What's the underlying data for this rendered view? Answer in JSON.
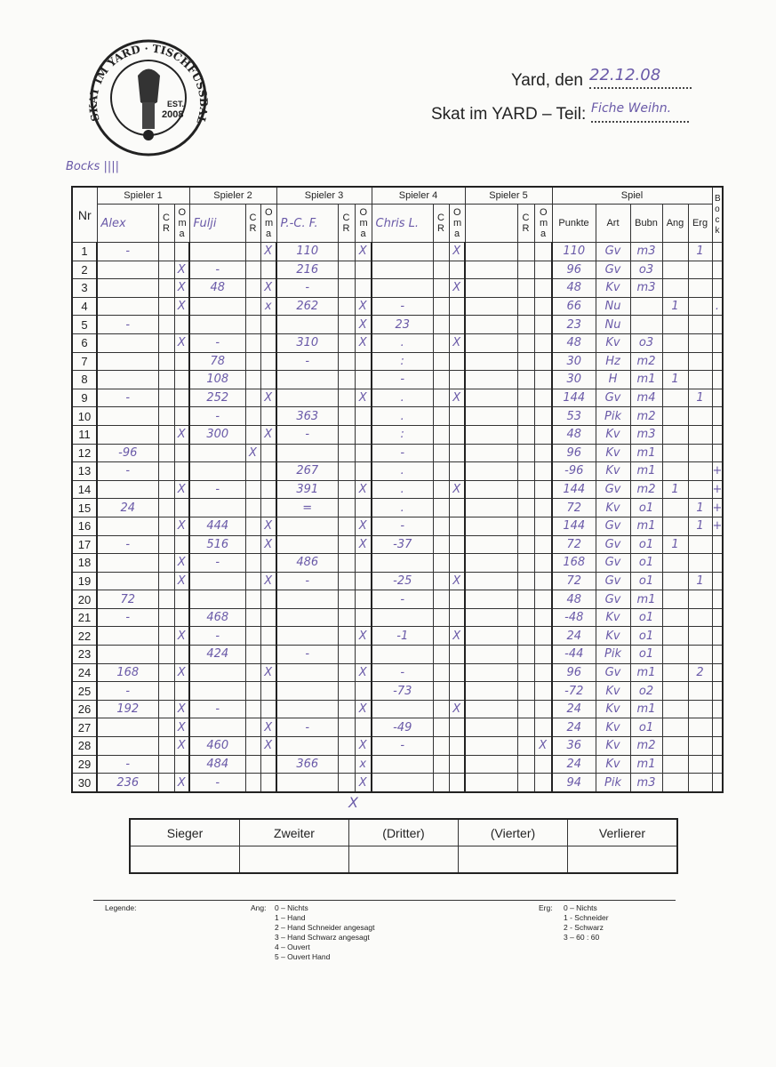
{
  "logo": {
    "text_top": "SKAT IM YARD",
    "text_right": "TISCHFUSSBALLTEAM",
    "est": "EST.",
    "year": "2008"
  },
  "header": {
    "date_label": "Yard, den",
    "date_value": "22.12.08",
    "part_label": "Skat im YARD – Teil:",
    "part_value": "Fiche Weihn.",
    "bocks_note": "Bocks ||||"
  },
  "table": {
    "nr_label": "Nr",
    "players": [
      {
        "label": "Spieler 1",
        "name": "Alex"
      },
      {
        "label": "Spieler 2",
        "name": "Fulji"
      },
      {
        "label": "Spieler 3",
        "name": "P.-C. F."
      },
      {
        "label": "Spieler 4",
        "name": "Chris L."
      },
      {
        "label": "Spieler 5",
        "name": ""
      }
    ],
    "cr_label": "C R",
    "oma_label": "O m a",
    "spiel_label": "Spiel",
    "spiel_cols": [
      "Punkte",
      "Art",
      "Bubn",
      "Ang",
      "Erg"
    ],
    "bock_label": "B o c k",
    "rows": [
      [
        "-",
        "",
        "",
        "",
        "",
        "X",
        "110",
        "",
        "X",
        "",
        "",
        "X",
        "",
        "",
        "",
        "110",
        "Gv",
        "m3",
        "",
        "1",
        ""
      ],
      [
        "",
        "",
        "X",
        "-",
        "",
        "",
        "216",
        "",
        "",
        "",
        "",
        "",
        "",
        "",
        "",
        "96",
        "Gv",
        "o3",
        "",
        "",
        ""
      ],
      [
        "",
        "",
        "X",
        "48",
        "",
        "X",
        "-",
        "",
        "",
        "",
        "",
        "X",
        "",
        "",
        "",
        "48",
        "Kv",
        "m3",
        "",
        "",
        ""
      ],
      [
        "",
        "",
        "X",
        "",
        "",
        "x",
        "262",
        "",
        "X",
        "-",
        "",
        "",
        "",
        "",
        "",
        "66",
        "Nu",
        "",
        "1",
        "",
        "."
      ],
      [
        "-",
        "",
        "",
        "",
        "",
        "",
        "",
        "",
        "X",
        "23",
        "",
        "",
        "",
        "",
        "",
        "23",
        "Nu",
        "",
        "",
        "",
        ""
      ],
      [
        "",
        "",
        "X",
        "-",
        "",
        "",
        "310",
        "",
        "X",
        ".",
        "",
        "X",
        "",
        "",
        "",
        "48",
        "Kv",
        "o3",
        "",
        "",
        ""
      ],
      [
        "",
        "",
        "",
        "78",
        "",
        "",
        "-",
        "",
        "",
        ":",
        "",
        "",
        "",
        "",
        "",
        "30",
        "Hz",
        "m2",
        "",
        "",
        ""
      ],
      [
        "",
        "",
        "",
        "108",
        "",
        "",
        "",
        "",
        "",
        "-",
        "",
        "",
        "",
        "",
        "",
        "30",
        "H",
        "m1",
        "1",
        "",
        ""
      ],
      [
        "-",
        "",
        "",
        "252",
        "",
        "X",
        "",
        "",
        "X",
        ".",
        "",
        "X",
        "",
        "",
        "",
        "144",
        "Gv",
        "m4",
        "",
        "1",
        ""
      ],
      [
        "",
        "",
        "",
        "-",
        "",
        "",
        "363",
        "",
        "",
        ".",
        "",
        "",
        "",
        "",
        "",
        "53",
        "Pik",
        "m2",
        "",
        "",
        ""
      ],
      [
        "",
        "",
        "X",
        "300",
        "",
        "X",
        "-",
        "",
        "",
        ":",
        "",
        "",
        "",
        "",
        "",
        "48",
        "Kv",
        "m3",
        "",
        "",
        ""
      ],
      [
        "-96",
        "",
        "",
        "",
        "X",
        "",
        "",
        "",
        "",
        "-",
        "",
        "",
        "",
        "",
        "",
        "96",
        "Kv",
        "m1",
        "",
        "",
        ""
      ],
      [
        "-",
        "",
        "",
        "",
        "",
        "",
        "267",
        "",
        "",
        ".",
        "",
        "",
        "",
        "",
        "",
        "-96",
        "Kv",
        "m1",
        "",
        "",
        "+"
      ],
      [
        "",
        "",
        "X",
        "-",
        "",
        "",
        "391",
        "",
        "X",
        ".",
        "",
        "X",
        "",
        "",
        "",
        "144",
        "Gv",
        "m2",
        "1",
        "",
        "+"
      ],
      [
        "24",
        "",
        "",
        "",
        "",
        "",
        "=",
        "",
        "",
        ".",
        "",
        "",
        "",
        "",
        "",
        "72",
        "Kv",
        "o1",
        "",
        "1",
        "+"
      ],
      [
        "",
        "",
        "X",
        "444",
        "",
        "X",
        "",
        "",
        "X",
        "-",
        "",
        "",
        "",
        "",
        "",
        "144",
        "Gv",
        "m1",
        "",
        "1",
        "+"
      ],
      [
        "-",
        "",
        "",
        "516",
        "",
        "X",
        "",
        "",
        "X",
        "-37",
        "",
        "",
        "",
        "",
        "",
        "72",
        "Gv",
        "o1",
        "1",
        "",
        ""
      ],
      [
        "",
        "",
        "X",
        "-",
        "",
        "",
        "486",
        "",
        "",
        "",
        "",
        "",
        "",
        "",
        "",
        "168",
        "Gv",
        "o1",
        "",
        "",
        ""
      ],
      [
        "",
        "",
        "X",
        "",
        "",
        "X",
        "-",
        "",
        "",
        "-25",
        "",
        "X",
        "",
        "",
        "",
        "72",
        "Gv",
        "o1",
        "",
        "1",
        ""
      ],
      [
        "72",
        "",
        "",
        "",
        "",
        "",
        "",
        "",
        "",
        "-",
        "",
        "",
        "",
        "",
        "",
        "48",
        "Gv",
        "m1",
        "",
        "",
        ""
      ],
      [
        "-",
        "",
        "",
        "468",
        "",
        "",
        "",
        "",
        "",
        "",
        "",
        "",
        "",
        "",
        "",
        "-48",
        "Kv",
        "o1",
        "",
        "",
        ""
      ],
      [
        "",
        "",
        "X",
        "-",
        "",
        "",
        "",
        "",
        "X",
        "-1",
        "",
        "X",
        "",
        "",
        "",
        "24",
        "Kv",
        "o1",
        "",
        "",
        ""
      ],
      [
        "",
        "",
        "",
        "424",
        "",
        "",
        "-",
        "",
        "",
        "",
        "",
        "",
        "",
        "",
        "",
        "-44",
        "Pik",
        "o1",
        "",
        "",
        ""
      ],
      [
        "168",
        "",
        "X",
        "",
        "",
        "X",
        "",
        "",
        "X",
        "-",
        "",
        "",
        "",
        "",
        "",
        "96",
        "Gv",
        "m1",
        "",
        "2",
        ""
      ],
      [
        "-",
        "",
        "",
        "",
        "",
        "",
        "",
        "",
        "",
        "-73",
        "",
        "",
        "",
        "",
        "",
        "-72",
        "Kv",
        "o2",
        "",
        "",
        ""
      ],
      [
        "192",
        "",
        "X",
        "-",
        "",
        "",
        "",
        "",
        "X",
        "",
        "",
        "X",
        "",
        "",
        "",
        "24",
        "Kv",
        "m1",
        "",
        "",
        ""
      ],
      [
        "",
        "",
        "X",
        "",
        "",
        "X",
        "-",
        "",
        "",
        "-49",
        "",
        "",
        "",
        "",
        "",
        "24",
        "Kv",
        "o1",
        "",
        "",
        ""
      ],
      [
        "",
        "",
        "X",
        "460",
        "",
        "X",
        "",
        "",
        "X",
        "-",
        "",
        "",
        "",
        "",
        "X",
        "36",
        "Kv",
        "m2",
        "",
        "",
        ""
      ],
      [
        "-",
        "",
        "",
        "484",
        "",
        "",
        "366",
        "",
        "x",
        "",
        "",
        "",
        "",
        "",
        "",
        "24",
        "Kv",
        "m1",
        "",
        "",
        ""
      ],
      [
        "236",
        "",
        "X",
        "-",
        "",
        "",
        "",
        "",
        "X",
        "",
        "",
        "",
        "",
        "",
        "",
        "94",
        "Pik",
        "m3",
        "",
        "",
        ""
      ]
    ],
    "below_mark": "X"
  },
  "result": {
    "headers": [
      "Sieger",
      "Zweiter",
      "(Dritter)",
      "(Vierter)",
      "Verlierer"
    ]
  },
  "legend": {
    "title": "Legende:",
    "ang_label": "Ang:",
    "ang_items": [
      "0 – Nichts",
      "1 – Hand",
      "2 – Hand Schneider angesagt",
      "3 – Hand Schwarz angesagt",
      "4 – Ouvert",
      "5 – Ouvert Hand"
    ],
    "erg_label": "Erg:",
    "erg_items": [
      "0 – Nichts",
      "1 - Schneider",
      "2 - Schwarz",
      "3 – 60 : 60"
    ]
  },
  "colors": {
    "ink": "#6a5aa8",
    "print": "#222222",
    "paper": "#fbfbf9"
  }
}
